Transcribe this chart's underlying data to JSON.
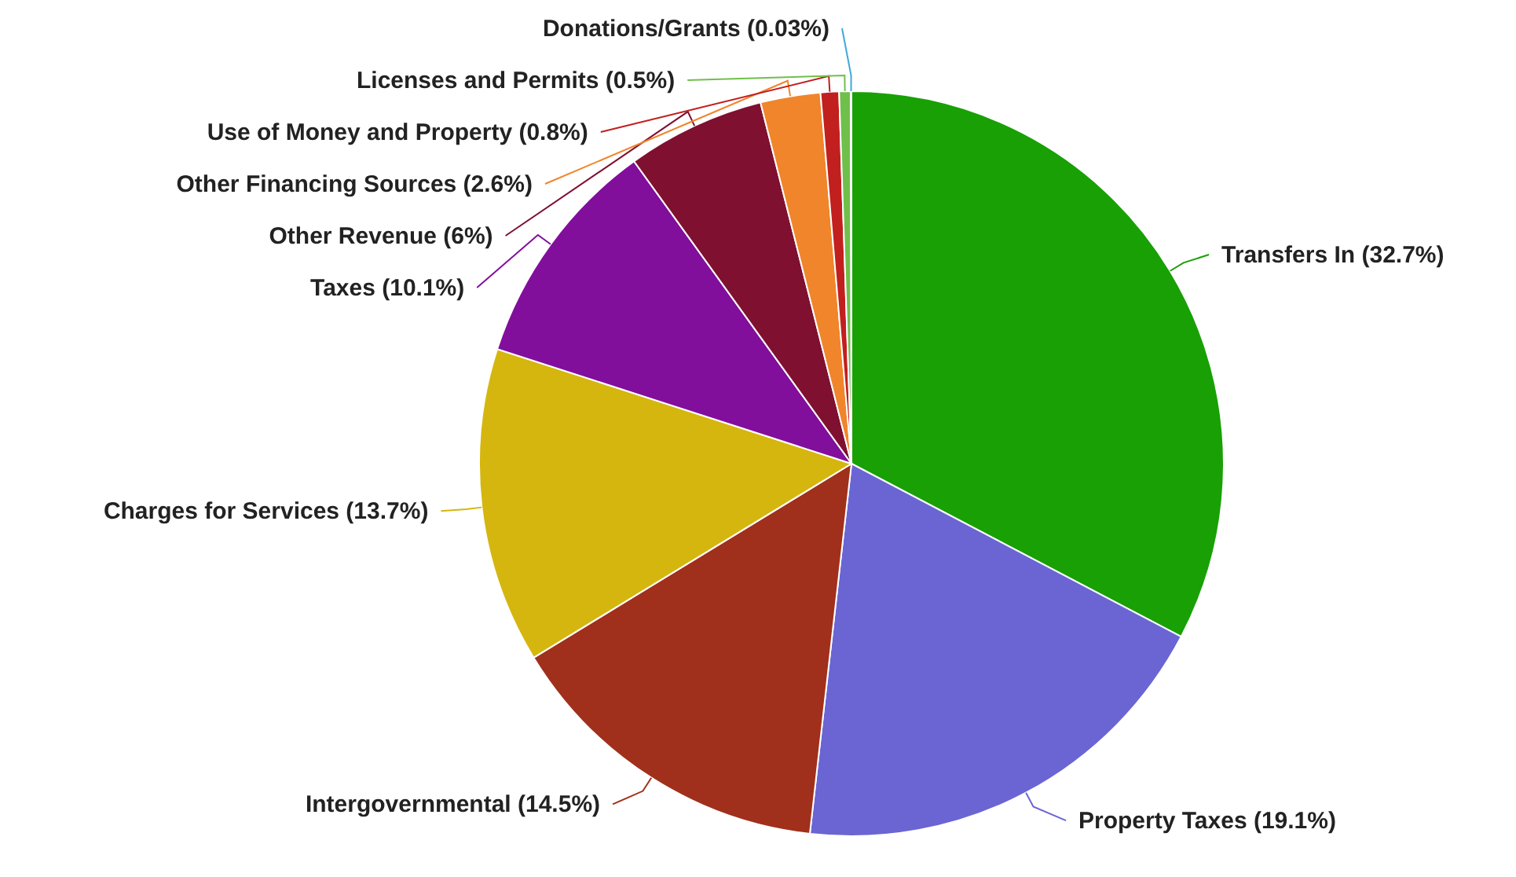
{
  "chart_data": {
    "type": "pie",
    "categories": [
      "Transfers In",
      "Property Taxes",
      "Intergovernmental",
      "Charges for Services",
      "Taxes",
      "Other Revenue",
      "Other Financing Sources",
      "Use of Money and Property",
      "Licenses and Permits",
      "Donations/Grants"
    ],
    "values": [
      32.7,
      19.1,
      14.5,
      13.7,
      10.1,
      6,
      2.6,
      0.8,
      0.5,
      0.03
    ],
    "value_labels": [
      "(32.7%)",
      "(19.1%)",
      "(14.5%)",
      "(13.7%)",
      "(10.1%)",
      "(6%)",
      "(2.6%)",
      "(0.8%)",
      "(0.5%)",
      "(0.03%)"
    ],
    "colors": [
      "#18a005",
      "#6a65d3",
      "#a0301b",
      "#d5b60f",
      "#820e9c",
      "#7f1030",
      "#f0852b",
      "#c21f1f",
      "#6fc04a",
      "#3fa9d6"
    ],
    "legend": false
  }
}
